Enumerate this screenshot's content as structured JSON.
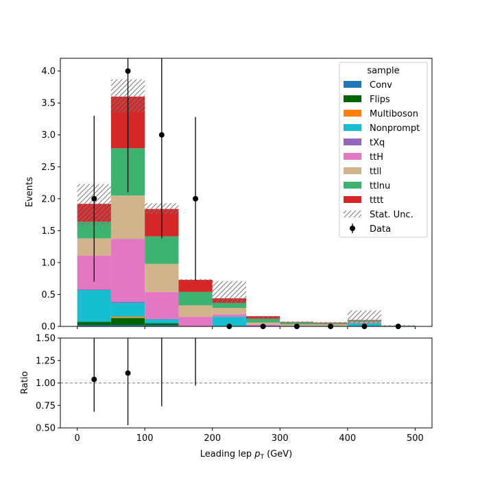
{
  "chart_data": {
    "type": "bar",
    "stacked": true,
    "bin_edges": [
      0,
      50,
      100,
      150,
      200,
      250,
      300,
      350,
      400,
      450,
      500
    ],
    "series": [
      {
        "name": "Conv",
        "color": "#1f77b4",
        "values": [
          0.02,
          0.02,
          0.02,
          0.0,
          0.0,
          0.0,
          0.0,
          0.0,
          0.0,
          0.0
        ]
      },
      {
        "name": "Flips",
        "color": "#006400",
        "values": [
          0.05,
          0.11,
          0.03,
          0.0,
          0.0,
          0.0,
          0.0,
          0.0,
          0.0,
          0.0
        ]
      },
      {
        "name": "Multiboson",
        "color": "#ff7f0e",
        "values": [
          0.0,
          0.02,
          0.0,
          0.0,
          0.0,
          0.0,
          0.0,
          0.0,
          0.0,
          0.0
        ]
      },
      {
        "name": "Nonprompt",
        "color": "#17becf",
        "values": [
          0.5,
          0.22,
          0.06,
          0.0,
          0.15,
          0.0,
          0.0,
          0.0,
          0.05,
          0.0
        ]
      },
      {
        "name": "tXq",
        "color": "#9467bd",
        "values": [
          0.01,
          0.02,
          0.01,
          0.0,
          0.0,
          0.01,
          0.0,
          0.0,
          0.0,
          0.0
        ]
      },
      {
        "name": "ttH",
        "color": "#e377c2",
        "values": [
          0.53,
          0.98,
          0.42,
          0.15,
          0.04,
          0.02,
          0.01,
          0.01,
          0.01,
          0.0
        ]
      },
      {
        "name": "ttll",
        "color": "#d2b48c",
        "values": [
          0.27,
          0.68,
          0.44,
          0.18,
          0.1,
          0.03,
          0.02,
          0.02,
          0.01,
          0.0
        ]
      },
      {
        "name": "ttlnu",
        "color": "#3cb371",
        "values": [
          0.26,
          0.74,
          0.43,
          0.21,
          0.08,
          0.06,
          0.03,
          0.02,
          0.02,
          0.01
        ]
      },
      {
        "name": "tttt",
        "color": "#d62728",
        "values": [
          0.28,
          0.81,
          0.43,
          0.19,
          0.07,
          0.04,
          0.01,
          0.01,
          0.01,
          0.0
        ]
      }
    ],
    "stat_unc": {
      "name": "Stat. Unc.",
      "low": [
        1.57,
        3.35,
        1.76,
        0.71,
        0.35,
        0.13,
        0.06,
        0.04,
        0.03,
        0.0
      ],
      "high": [
        2.23,
        3.87,
        1.93,
        0.74,
        0.71,
        0.16,
        0.08,
        0.07,
        0.25,
        0.02
      ]
    },
    "data": {
      "name": "Data",
      "x": [
        25,
        75,
        125,
        175,
        225,
        275,
        325,
        375,
        425,
        475
      ],
      "y": [
        2,
        4,
        3,
        2,
        0,
        0,
        0,
        0,
        0,
        0
      ],
      "yerr": [
        1.3,
        1.9,
        1.62,
        1.28,
        0,
        0,
        0,
        0,
        0,
        0
      ]
    },
    "ratio": {
      "x": [
        25,
        75,
        125,
        175
      ],
      "y": [
        1.04,
        1.11,
        null,
        null
      ],
      "err_low": [
        0.68,
        0.53,
        0.74,
        0.97
      ],
      "err_high": [
        1.6,
        1.6,
        1.6,
        1.6
      ],
      "ylabel": "Ratio",
      "ylim": [
        0.5,
        1.5
      ],
      "yticks": [
        0.5,
        0.75,
        1.0,
        1.25,
        1.5
      ],
      "reference_line": 1.0
    },
    "xlim": [
      -25,
      525
    ],
    "ylim": [
      0,
      4.2
    ],
    "xticks": [
      0,
      100,
      200,
      300,
      400,
      500
    ],
    "yticks": [
      0.0,
      0.5,
      1.0,
      1.5,
      2.0,
      2.5,
      3.0,
      3.5,
      4.0
    ],
    "ytick_labels": [
      "0.0",
      "0.5",
      "1.0",
      "1.5",
      "2.0",
      "2.5",
      "3.0",
      "3.5",
      "4.0"
    ],
    "ratio_ytick_labels": [
      "0.50",
      "0.75",
      "1.00",
      "1.25",
      "1.50"
    ],
    "ylabel": "Events",
    "xlabel_main": "Leading lep ",
    "xlabel_sym": "p",
    "xlabel_sub": "T",
    "xlabel_unit": " (GeV)",
    "legend_title": "sample",
    "legend_position": "top-right",
    "grid": false
  }
}
